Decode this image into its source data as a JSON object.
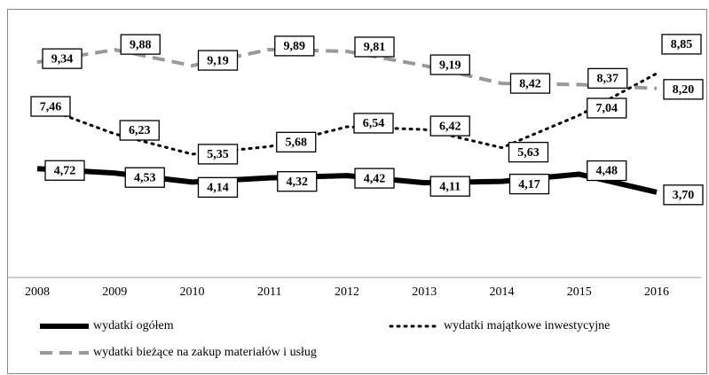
{
  "chart_data": {
    "type": "line",
    "categories": [
      "2008",
      "2009",
      "2010",
      "2011",
      "2012",
      "2013",
      "2014",
      "2015",
      "2016"
    ],
    "series": [
      {
        "name": "wydatki ogółem",
        "color": "#000000",
        "style": "solid",
        "values": [
          4.72,
          4.53,
          4.14,
          4.32,
          4.42,
          4.11,
          4.17,
          4.48,
          3.7
        ],
        "value_labels": [
          "4,72",
          "4,53",
          "4,14",
          "4,32",
          "4,42",
          "4,11",
          "4,17",
          "4,48",
          "3,70"
        ]
      },
      {
        "name": "wydatki majątkowe inwestycyjne",
        "color": "#000000",
        "style": "dotted",
        "values": [
          7.46,
          6.23,
          5.35,
          5.68,
          6.54,
          6.42,
          5.63,
          7.04,
          8.85
        ],
        "value_labels": [
          "7,46",
          "6,23",
          "5,35",
          "5,68",
          "6,54",
          "6,42",
          "5,63",
          "7,04",
          "8,85"
        ]
      },
      {
        "name": "wydatki bieżące na zakup materiałów i usług",
        "color": "#999999",
        "style": "dashed",
        "values": [
          9.34,
          9.88,
          9.19,
          9.89,
          9.81,
          9.19,
          8.42,
          8.37,
          8.2
        ],
        "value_labels": [
          "9,34",
          "9,88",
          "9,19",
          "9,89",
          "9,81",
          "9,19",
          "8,42",
          "8,37",
          "8,20"
        ]
      }
    ],
    "ylim": [
      0,
      11.5
    ]
  }
}
